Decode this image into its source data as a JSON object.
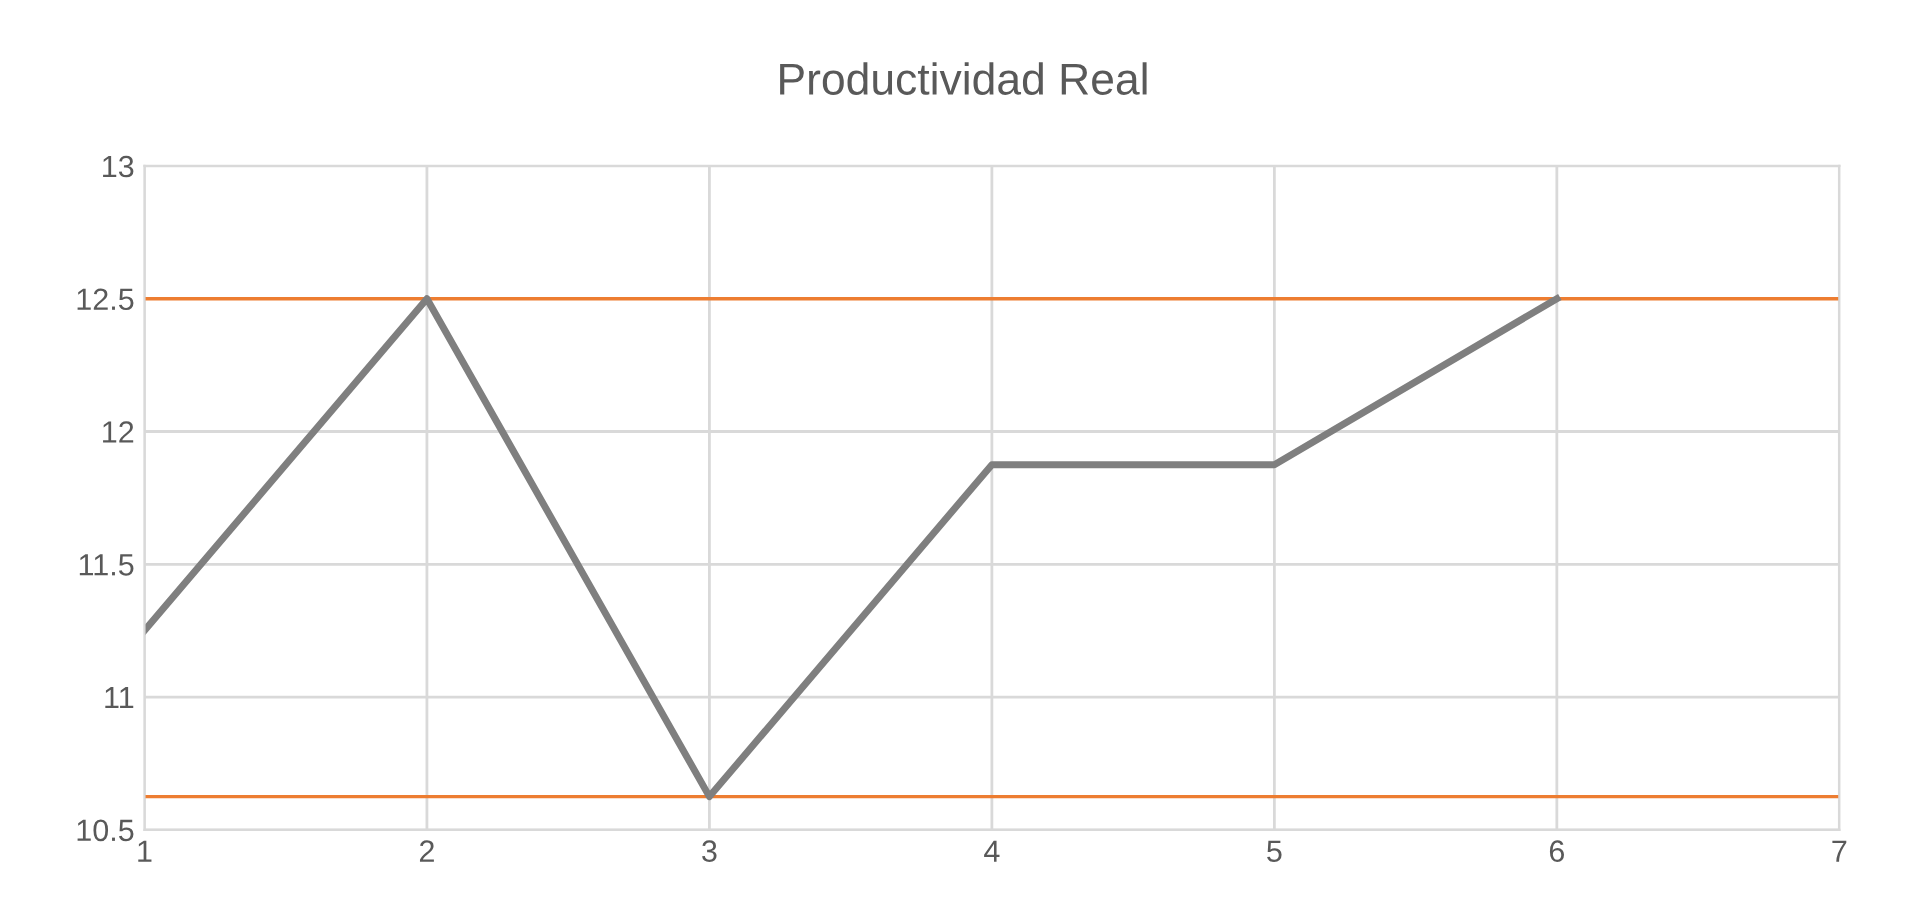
{
  "chart_data": {
    "type": "line",
    "title": "Productividad Real",
    "x": [
      1,
      2,
      3,
      4,
      5,
      6
    ],
    "series": [
      {
        "color": "#7f7f7f",
        "values": [
          11.25,
          12.5,
          10.625,
          11.875,
          11.875,
          12.5
        ]
      }
    ],
    "ref_lines": [
      {
        "axis": "y",
        "value": 12.5,
        "color": "#ed7d31"
      },
      {
        "axis": "y",
        "value": 10.625,
        "color": "#ed7d31"
      }
    ],
    "xlim": [
      1,
      7
    ],
    "xticks": [
      1,
      2,
      3,
      4,
      5,
      6,
      7
    ],
    "ylim": [
      10.5,
      13
    ],
    "yticks": [
      10.5,
      11,
      11.5,
      12,
      12.5,
      13
    ],
    "grid": true,
    "legend": false,
    "marker": "none",
    "line_style": "solid"
  }
}
